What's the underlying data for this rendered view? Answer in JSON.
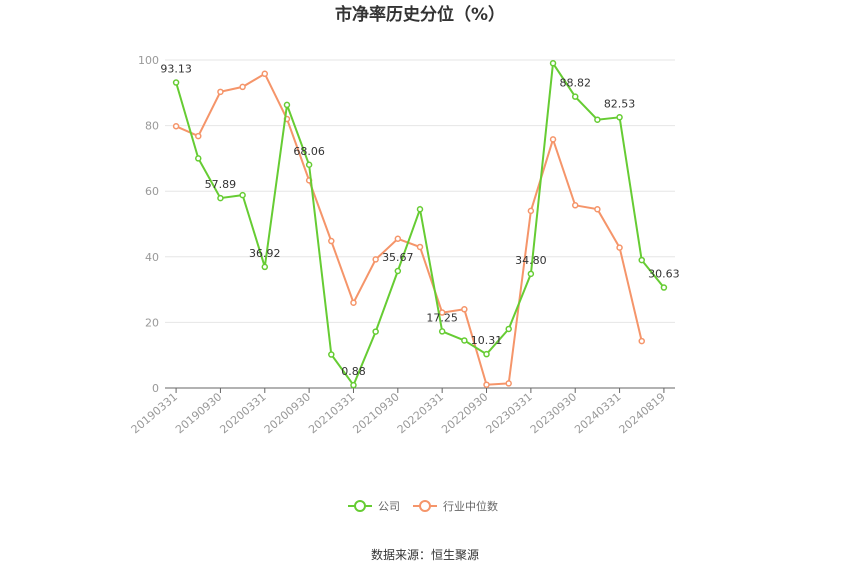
{
  "chart_data": {
    "type": "line",
    "title": "市净率历史分位（%）",
    "source": "数据来源：恒生聚源",
    "ylim": [
      0,
      100
    ],
    "yticks": [
      0,
      20,
      40,
      60,
      80,
      100
    ],
    "x": [
      "20190331",
      "20190630",
      "20190930",
      "20191231",
      "20200331",
      "20200630",
      "20200930",
      "20201231",
      "20210331",
      "20210630",
      "20210930",
      "20211231",
      "20220331",
      "20220630",
      "20220930",
      "20221231",
      "20230331",
      "20230630",
      "20230930",
      "20231231",
      "20240331",
      "20240630",
      "20240819"
    ],
    "xtick_labels": [
      "20190331",
      "20190930",
      "20200331",
      "20200930",
      "20210331",
      "20210930",
      "20220331",
      "20220930",
      "20230331",
      "20230930",
      "20240331",
      "20240819"
    ],
    "legend_position": "bottom",
    "grid": true,
    "series": [
      {
        "name": "公司",
        "color": "#66cc33",
        "values": [
          93.13,
          70.0,
          57.89,
          58.8,
          36.92,
          86.3,
          68.06,
          10.2,
          0.88,
          17.2,
          35.67,
          54.5,
          17.25,
          14.5,
          10.31,
          18.0,
          34.8,
          99.0,
          88.82,
          81.8,
          82.53,
          39.0,
          30.63
        ],
        "labels": {
          "0": "93.13",
          "2": "57.89",
          "4": "36.92",
          "6": "68.06",
          "8": "0.88",
          "10": "35.67",
          "12": "17.25",
          "14": "10.31",
          "16": "34.80",
          "18": "88.82",
          "20": "82.53",
          "22": "30.63"
        }
      },
      {
        "name": "行业中位数",
        "color": "#f5956a",
        "values": [
          79.8,
          76.8,
          90.3,
          91.8,
          95.8,
          82.0,
          63.3,
          44.8,
          26.0,
          39.2,
          45.5,
          43.0,
          23.0,
          24.0,
          1.0,
          1.4,
          54.0,
          75.8,
          55.7,
          54.5,
          42.8,
          14.3,
          null
        ]
      }
    ]
  }
}
